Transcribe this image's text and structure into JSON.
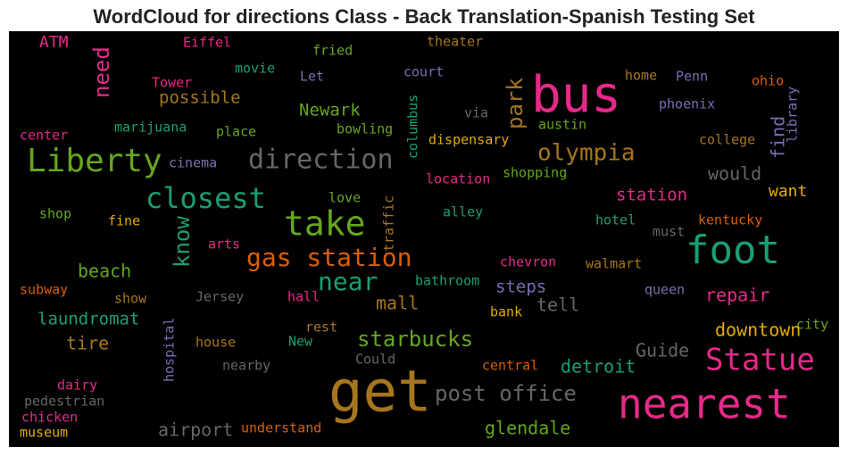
{
  "chart_data": {
    "type": "wordcloud",
    "title": "WordCloud for directions Class - Back Translation-Spanish Testing Set",
    "background": "#000000",
    "words": [
      {
        "text": "ATM",
        "color": "#e7298a"
      },
      {
        "text": "Eiffel",
        "color": "#e7298a"
      },
      {
        "text": "fried",
        "color": "#66a61e"
      },
      {
        "text": "theater",
        "color": "#a6761d"
      },
      {
        "text": "need",
        "color": "#e7298a"
      },
      {
        "text": "Tower",
        "color": "#e7298a"
      },
      {
        "text": "movie",
        "color": "#1b9e77"
      },
      {
        "text": "Let",
        "color": "#7570b3"
      },
      {
        "text": "court",
        "color": "#7570b3"
      },
      {
        "text": "bus",
        "color": "#e7298a"
      },
      {
        "text": "home",
        "color": "#a6761d"
      },
      {
        "text": "Penn",
        "color": "#7570b3"
      },
      {
        "text": "ohio",
        "color": "#d95f02"
      },
      {
        "text": "possible",
        "color": "#a6761d"
      },
      {
        "text": "columbus",
        "color": "#1b9e77"
      },
      {
        "text": "park",
        "color": "#a6761d"
      },
      {
        "text": "via",
        "color": "#666666"
      },
      {
        "text": "library",
        "color": "#7570b3"
      },
      {
        "text": "phoenix",
        "color": "#7570b3"
      },
      {
        "text": "find",
        "color": "#7570b3"
      },
      {
        "text": "Newark",
        "color": "#66a61e"
      },
      {
        "text": "marijuana",
        "color": "#1b9e77"
      },
      {
        "text": "place",
        "color": "#66a61e"
      },
      {
        "text": "bowling",
        "color": "#66a61e"
      },
      {
        "text": "austin",
        "color": "#66a61e"
      },
      {
        "text": "center",
        "color": "#e7298a"
      },
      {
        "text": "dispensary",
        "color": "#e6ab02"
      },
      {
        "text": "college",
        "color": "#a6761d"
      },
      {
        "text": "Liberty",
        "color": "#66a61e"
      },
      {
        "text": "direction",
        "color": "#666666"
      },
      {
        "text": "olympia",
        "color": "#a6761d"
      },
      {
        "text": "cinema",
        "color": "#7570b3"
      },
      {
        "text": "shopping",
        "color": "#66a61e"
      },
      {
        "text": "would",
        "color": "#666666"
      },
      {
        "text": "location",
        "color": "#e7298a"
      },
      {
        "text": "closest",
        "color": "#1b9e77"
      },
      {
        "text": "station",
        "color": "#e7298a"
      },
      {
        "text": "want",
        "color": "#e6ab02"
      },
      {
        "text": "love",
        "color": "#66a61e"
      },
      {
        "text": "know",
        "color": "#1b9e77"
      },
      {
        "text": "take",
        "color": "#66a61e"
      },
      {
        "text": "traffic",
        "color": "#a6761d"
      },
      {
        "text": "shop",
        "color": "#66a61e"
      },
      {
        "text": "alley",
        "color": "#1b9e77"
      },
      {
        "text": "hotel",
        "color": "#1b9e77"
      },
      {
        "text": "kentucky",
        "color": "#d95f02"
      },
      {
        "text": "fine",
        "color": "#e6ab02"
      },
      {
        "text": "must",
        "color": "#666666"
      },
      {
        "text": "foot",
        "color": "#1b9e77"
      },
      {
        "text": "arts",
        "color": "#e7298a"
      },
      {
        "text": "gas station",
        "color": "#d95f02"
      },
      {
        "text": "chevron",
        "color": "#e7298a"
      },
      {
        "text": "walmart",
        "color": "#a6761d"
      },
      {
        "text": "beach",
        "color": "#66a61e"
      },
      {
        "text": "near",
        "color": "#1b9e77"
      },
      {
        "text": "subway",
        "color": "#d95f02"
      },
      {
        "text": "bathroom",
        "color": "#1b9e77"
      },
      {
        "text": "steps",
        "color": "#7570b3"
      },
      {
        "text": "queen",
        "color": "#7570b3"
      },
      {
        "text": "repair",
        "color": "#e7298a"
      },
      {
        "text": "show",
        "color": "#a6761d"
      },
      {
        "text": "Jersey",
        "color": "#666666"
      },
      {
        "text": "hall",
        "color": "#e7298a"
      },
      {
        "text": "mall",
        "color": "#a6761d"
      },
      {
        "text": "tell",
        "color": "#666666"
      },
      {
        "text": "bank",
        "color": "#e6ab02"
      },
      {
        "text": "laundromat",
        "color": "#1b9e77"
      },
      {
        "text": "hospital",
        "color": "#7570b3"
      },
      {
        "text": "rest",
        "color": "#a6761d"
      },
      {
        "text": "city",
        "color": "#66a61e"
      },
      {
        "text": "downtown",
        "color": "#e6ab02"
      },
      {
        "text": "starbucks",
        "color": "#66a61e"
      },
      {
        "text": "tire",
        "color": "#a6761d"
      },
      {
        "text": "house",
        "color": "#a6761d"
      },
      {
        "text": "New",
        "color": "#1b9e77"
      },
      {
        "text": "Guide",
        "color": "#666666"
      },
      {
        "text": "Statue",
        "color": "#e7298a"
      },
      {
        "text": "nearby",
        "color": "#666666"
      },
      {
        "text": "Could",
        "color": "#666666"
      },
      {
        "text": "central",
        "color": "#d95f02"
      },
      {
        "text": "detroit",
        "color": "#1b9e77"
      },
      {
        "text": "get",
        "color": "#a6761d"
      },
      {
        "text": "post office",
        "color": "#666666"
      },
      {
        "text": "nearest",
        "color": "#e7298a"
      },
      {
        "text": "dairy",
        "color": "#e7298a"
      },
      {
        "text": "pedestrian",
        "color": "#666666"
      },
      {
        "text": "chicken",
        "color": "#e7298a"
      },
      {
        "text": "museum",
        "color": "#e6ab02"
      },
      {
        "text": "glendale",
        "color": "#66a61e"
      },
      {
        "text": "airport",
        "color": "#666666"
      },
      {
        "text": "understand",
        "color": "#d95f02"
      }
    ]
  }
}
